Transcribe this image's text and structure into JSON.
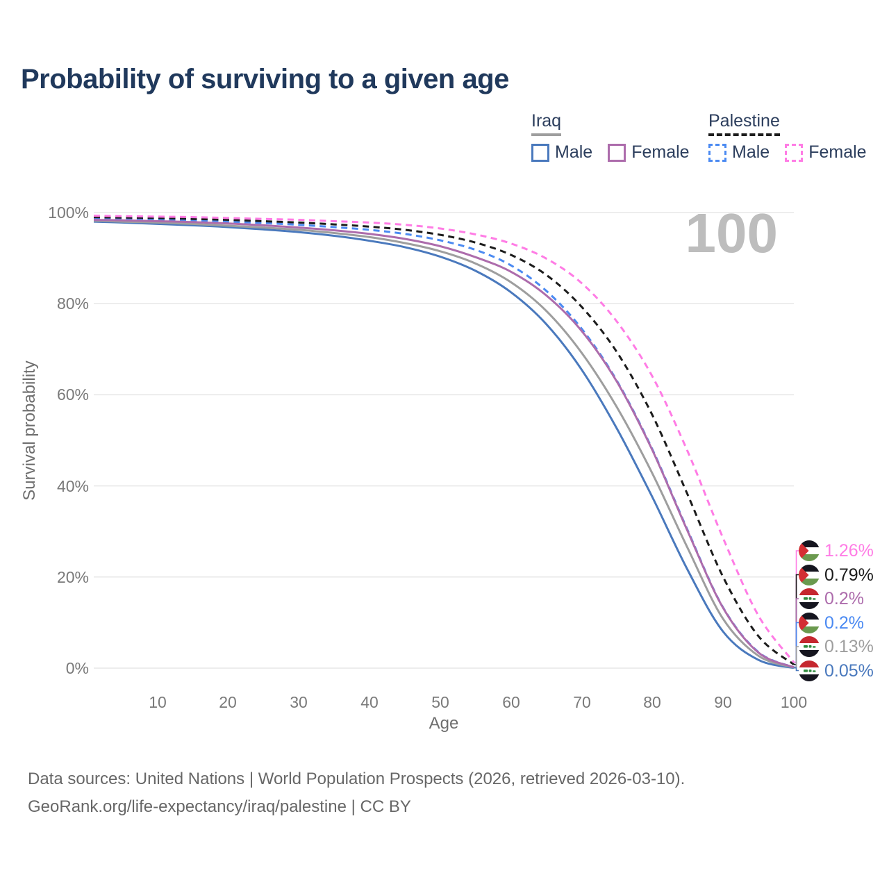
{
  "title": "Probability of surviving to a given age",
  "watermark": "100",
  "legend": {
    "groups": [
      {
        "name": "Iraq",
        "line_style": "solid",
        "underline_color": "#9e9e9e",
        "items": [
          {
            "label": "Male",
            "color": "#4a79bd"
          },
          {
            "label": "Female",
            "color": "#ad6cac"
          }
        ]
      },
      {
        "name": "Palestine",
        "line_style": "dashed",
        "underline_color": "#1c1c1c",
        "items": [
          {
            "label": "Male",
            "color": "#4b8af2"
          },
          {
            "label": "Female",
            "color": "#ff7ce5"
          }
        ]
      }
    ]
  },
  "axes": {
    "x": {
      "label": "Age",
      "ticks": [
        "10",
        "20",
        "30",
        "40",
        "50",
        "60",
        "70",
        "80",
        "90",
        "100"
      ],
      "tick_values": [
        10,
        20,
        30,
        40,
        50,
        60,
        70,
        80,
        90,
        100
      ],
      "range": [
        1,
        100
      ]
    },
    "y": {
      "label": "Survival probability",
      "ticks": [
        "0%",
        "20%",
        "40%",
        "60%",
        "80%",
        "100%"
      ],
      "tick_values": [
        0,
        20,
        40,
        60,
        80,
        100
      ],
      "range": [
        0,
        100
      ],
      "grid": true
    }
  },
  "chart_data": {
    "type": "line",
    "title": "Probability of surviving to a given age",
    "xlabel": "Age",
    "ylabel": "Survival probability",
    "xlim": [
      1,
      100
    ],
    "ylim": [
      0,
      100
    ],
    "grid": "horizontal",
    "x": [
      1,
      5,
      10,
      15,
      20,
      25,
      30,
      35,
      40,
      45,
      50,
      55,
      60,
      65,
      70,
      75,
      80,
      85,
      90,
      95,
      100
    ],
    "series": [
      {
        "name": "Palestine Female",
        "country": "palestine",
        "sex": "female",
        "color": "#ff7ce5",
        "dashed": true,
        "end_label": "1.26%",
        "values": [
          99.3,
          99.2,
          99.1,
          99.0,
          98.8,
          98.6,
          98.4,
          98.1,
          97.8,
          97.3,
          96.5,
          95.2,
          93.2,
          89.9,
          84.5,
          76.0,
          64.0,
          47.5,
          28.5,
          11.5,
          1.26
        ]
      },
      {
        "name": "Palestine Both sexes",
        "country": "palestine",
        "sex": "both",
        "color": "#1c1c1c",
        "dashed": true,
        "end_label": "0.79%",
        "values": [
          99.0,
          98.9,
          98.8,
          98.6,
          98.4,
          98.1,
          97.8,
          97.4,
          96.9,
          96.2,
          95.1,
          93.4,
          90.7,
          86.3,
          79.3,
          69.3,
          55.5,
          38.0,
          20.0,
          7.0,
          0.79
        ]
      },
      {
        "name": "Iraq Female",
        "country": "iraq",
        "sex": "female",
        "color": "#ad6cac",
        "dashed": false,
        "end_label": "0.2%",
        "values": [
          98.4,
          98.3,
          98.1,
          97.9,
          97.6,
          97.2,
          96.7,
          96.1,
          95.3,
          94.2,
          92.6,
          90.2,
          87.0,
          81.8,
          74.0,
          62.8,
          47.8,
          30.0,
          13.2,
          3.4,
          0.2
        ]
      },
      {
        "name": "Palestine Male",
        "country": "palestine",
        "sex": "male",
        "color": "#4b8af2",
        "dashed": true,
        "end_label": "0.2%",
        "values": [
          98.8,
          98.7,
          98.5,
          98.3,
          98.0,
          97.7,
          97.3,
          96.8,
          96.2,
          95.3,
          93.9,
          91.8,
          88.4,
          82.8,
          74.5,
          63.0,
          48.0,
          30.2,
          13.3,
          3.5,
          0.2
        ]
      },
      {
        "name": "Iraq Both sexes",
        "country": "iraq",
        "sex": "both",
        "color": "#9e9e9e",
        "dashed": false,
        "end_label": "0.13%",
        "values": [
          98.2,
          98.0,
          97.8,
          97.5,
          97.1,
          96.7,
          96.2,
          95.5,
          94.6,
          93.3,
          91.5,
          88.8,
          84.7,
          78.4,
          69.2,
          57.2,
          42.7,
          26.3,
          10.8,
          2.7,
          0.13
        ]
      },
      {
        "name": "Iraq Male",
        "country": "iraq",
        "sex": "male",
        "color": "#4a79bd",
        "dashed": false,
        "end_label": "0.05%",
        "values": [
          98.0,
          97.8,
          97.5,
          97.2,
          96.8,
          96.3,
          95.7,
          94.9,
          93.8,
          92.4,
          90.3,
          87.2,
          82.5,
          75.5,
          65.5,
          52.5,
          37.5,
          21.5,
          8.0,
          1.8,
          0.05
        ]
      }
    ]
  },
  "footer": {
    "line1": "Data sources: United Nations | World Population Prospects (2026, retrieved 2026-03-10).",
    "line2": "GeoRank.org/life-expectancy/iraq/palestine | CC BY"
  }
}
